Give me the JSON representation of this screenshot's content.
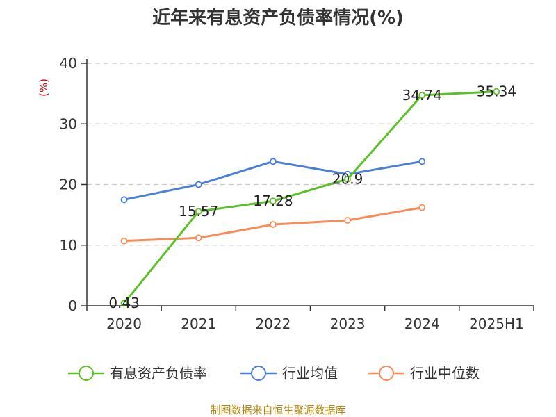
{
  "chart_data": {
    "type": "line",
    "title": "近年来有息资产负债率情况(%)",
    "ylabel": "(%)",
    "categories": [
      "2020",
      "2021",
      "2022",
      "2023",
      "2024",
      "2025H1"
    ],
    "yticks": [
      "0",
      "10",
      "20",
      "30",
      "40"
    ],
    "ylim": [
      0,
      40
    ],
    "grid": true,
    "legend_position": "bottom",
    "series": [
      {
        "name": "有息资产负债率",
        "color": "#5cc127",
        "values": [
          0.43,
          15.57,
          17.28,
          20.9,
          34.74,
          35.34
        ],
        "labels": [
          "0.43",
          "15.57",
          "17.28",
          "20.9",
          "34.74",
          "35.34"
        ]
      },
      {
        "name": "行业均值",
        "color": "#4a7fd8",
        "values": [
          17.5,
          20.0,
          23.8,
          21.7,
          23.8,
          null
        ]
      },
      {
        "name": "行业中位数",
        "color": "#f78c57",
        "values": [
          10.7,
          11.2,
          13.4,
          14.1,
          16.2,
          null
        ]
      }
    ]
  },
  "source": "制图数据来自恒生聚源数据库"
}
